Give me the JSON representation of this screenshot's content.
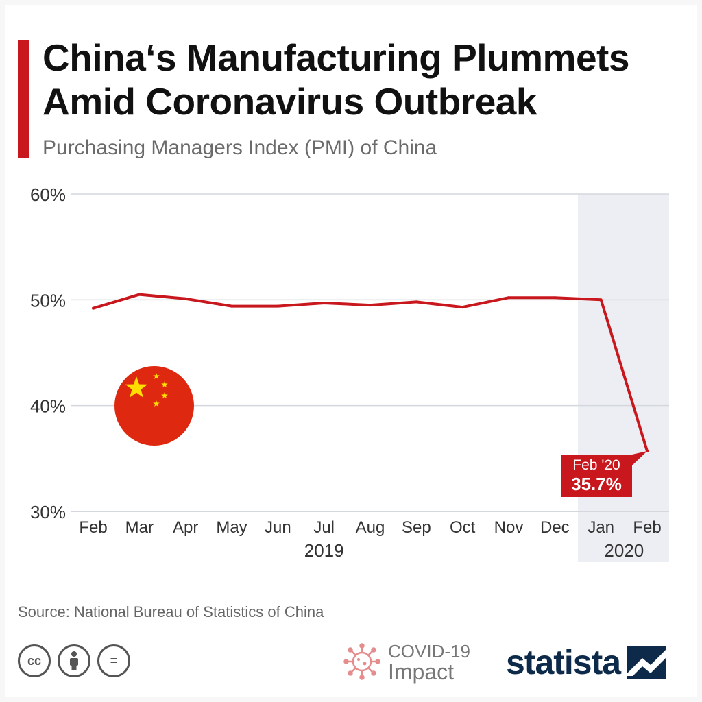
{
  "header": {
    "title_line1": "China‘s Manufacturing Plummets",
    "title_line2": "Amid Coronavirus Outbreak",
    "subtitle": "Purchasing Managers Index (PMI) of China"
  },
  "colors": {
    "accent": "#c8171d",
    "line": "#c8171d",
    "highlight_band": "#eceef3",
    "grid": "#d4d7dd",
    "flag_red": "#de2910",
    "flag_star": "#ffde00",
    "brand": "#0d2a4a"
  },
  "chart_data": {
    "type": "line",
    "categories": [
      "Feb",
      "Mar",
      "Apr",
      "May",
      "Jun",
      "Jul",
      "Aug",
      "Sep",
      "Oct",
      "Nov",
      "Dec",
      "Jan",
      "Feb"
    ],
    "year_labels": [
      "2019",
      "2020"
    ],
    "series": [
      {
        "values": [
          49.2,
          50.5,
          50.1,
          49.4,
          49.4,
          49.7,
          49.5,
          49.8,
          49.3,
          50.2,
          50.2,
          50.0,
          35.7
        ]
      }
    ],
    "ylim": [
      30,
      60
    ],
    "yticks": [
      30,
      40,
      50,
      60
    ],
    "ytick_labels": [
      "30%",
      "40%",
      "50%",
      "60%"
    ],
    "highlight_categories": [
      "Jan",
      "Feb"
    ],
    "grid": true,
    "annotation": {
      "line1": "Feb '20",
      "line2": "35.7%",
      "category_index": 12
    }
  },
  "footer": {
    "source": "Source: National Bureau of Statistics of China",
    "cc_labels": [
      "cc",
      "",
      "="
    ],
    "covid_line1": "COVID-19",
    "covid_line2": "Impact",
    "brand": "statista"
  },
  "icons": [
    "china-flag-icon",
    "cc-icon",
    "by-icon",
    "nd-icon",
    "virus-icon",
    "statista-logo-icon"
  ]
}
